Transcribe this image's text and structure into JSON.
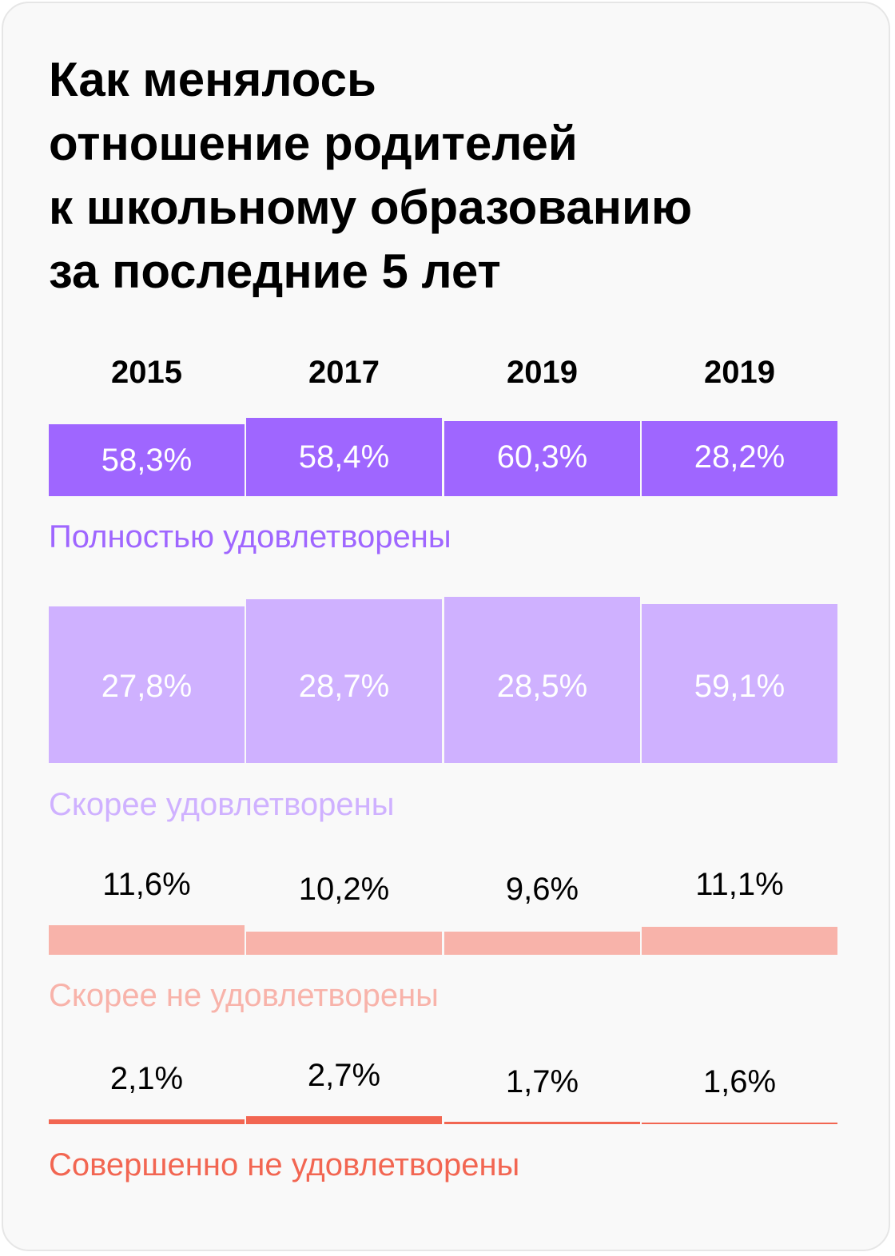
{
  "chart_data": {
    "type": "bar",
    "title": "Как менялось отношение родителей к школьному образованию за последние 5 лет",
    "title_lines": [
      "Как менялось",
      "отношение родителей",
      "к школьному образованию",
      "за последние 5 лет"
    ],
    "categories": [
      "2015",
      "2017",
      "2019",
      "2019"
    ],
    "series": [
      {
        "name": "Полностью удовлетворены",
        "color": "#9f66ff",
        "values": [
          58.3,
          58.4,
          60.3,
          28.2
        ],
        "labels": [
          "58,3%",
          "58,4%",
          "60,3%",
          "28,2%"
        ],
        "label_color": "#ffffff"
      },
      {
        "name": "Скорее удовлетворены",
        "color": "#cfb1ff",
        "values": [
          27.8,
          28.7,
          28.5,
          59.1
        ],
        "labels": [
          "27,8%",
          "28,7%",
          "28,5%",
          "59,1%"
        ],
        "label_color": "#ffffff"
      },
      {
        "name": "Скорее не удовлетворены",
        "color": "#f8b3aa",
        "values": [
          11.6,
          10.2,
          9.6,
          11.1
        ],
        "labels": [
          "11,6%",
          "10,2%",
          "9,6%",
          "11,1%"
        ],
        "label_color": "#000000"
      },
      {
        "name": "Совершенно не удовлетворены",
        "color": "#f26652",
        "values": [
          2.1,
          2.7,
          1.7,
          1.6
        ],
        "labels": [
          "2,1%",
          "2,7%",
          "1,7%",
          "1,6%"
        ],
        "label_color": "#000000"
      }
    ],
    "legend": "below each row",
    "grid": false
  }
}
